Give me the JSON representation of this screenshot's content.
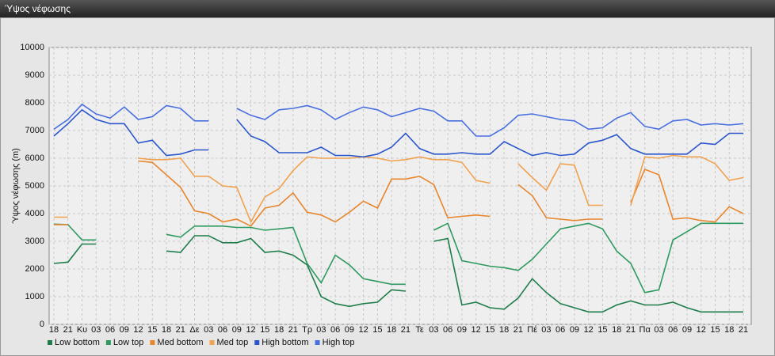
{
  "window": {
    "title": "Ύψος νέφωσης"
  },
  "chart_data": {
    "type": "line",
    "y_label": "Ύψος νέφωσης (m)",
    "categories": [
      "18",
      "21",
      "Κυ",
      "03",
      "06",
      "09",
      "12",
      "15",
      "18",
      "21",
      "Δε",
      "03",
      "06",
      "09",
      "12",
      "15",
      "18",
      "21",
      "Τρ",
      "03",
      "06",
      "09",
      "12",
      "15",
      "18",
      "21",
      "Τε",
      "03",
      "06",
      "09",
      "12",
      "15",
      "18",
      "21",
      "Πέ",
      "03",
      "06",
      "09",
      "12",
      "15",
      "18",
      "21",
      "Πα",
      "03",
      "06",
      "09",
      "12",
      "15",
      "18",
      "21"
    ],
    "ylim": [
      0,
      10000
    ],
    "yticks": [
      0,
      1000,
      2000,
      3000,
      4000,
      5000,
      6000,
      7000,
      8000,
      9000,
      10000
    ],
    "grid": true,
    "legend": "bottom",
    "series": [
      {
        "name": "Low bottom",
        "color": "#1f7d4c",
        "values": [
          2200,
          2250,
          2900,
          2900,
          null,
          null,
          null,
          null,
          2650,
          2600,
          3200,
          3200,
          2950,
          2950,
          3100,
          2600,
          2650,
          2500,
          2150,
          1000,
          750,
          650,
          750,
          800,
          1250,
          1200,
          null,
          3000,
          3100,
          700,
          800,
          600,
          550,
          950,
          1650,
          1150,
          750,
          600,
          450,
          450,
          700,
          850,
          700,
          700,
          800,
          600,
          450,
          450,
          450,
          450
        ]
      },
      {
        "name": "Low top",
        "color": "#2f9a60",
        "values": [
          3620,
          3600,
          3050,
          3050,
          null,
          null,
          null,
          null,
          3250,
          3150,
          3550,
          3550,
          3550,
          3500,
          3500,
          3400,
          3450,
          3500,
          2200,
          1500,
          2500,
          2150,
          1650,
          1550,
          1450,
          1450,
          null,
          3400,
          3650,
          2300,
          2200,
          2100,
          2050,
          1950,
          2350,
          2900,
          3450,
          3550,
          3650,
          3450,
          2650,
          2200,
          1150,
          1250,
          3050,
          3350,
          3650,
          3650,
          3650,
          3650
        ]
      },
      {
        "name": "Med bottom",
        "color": "#e8862c",
        "values": [
          3600,
          3600,
          null,
          null,
          null,
          null,
          5900,
          5850,
          5400,
          4950,
          4100,
          4000,
          3700,
          3800,
          3550,
          4200,
          4300,
          4750,
          4050,
          3950,
          3700,
          4050,
          4450,
          4200,
          5250,
          5250,
          5350,
          5050,
          3850,
          3900,
          3950,
          3900,
          null,
          5050,
          4650,
          3850,
          3800,
          3750,
          3800,
          3800,
          null,
          4400,
          5600,
          5400,
          3800,
          3850,
          3750,
          3700,
          4250,
          4000
        ]
      },
      {
        "name": "Med top",
        "color": "#f0a250",
        "values": [
          3870,
          3870,
          null,
          null,
          null,
          null,
          6000,
          5950,
          5950,
          6000,
          5350,
          5350,
          5000,
          4950,
          3700,
          4600,
          4900,
          5550,
          6050,
          6000,
          6000,
          6000,
          6050,
          6000,
          5900,
          5950,
          6050,
          5950,
          5950,
          5850,
          5200,
          5100,
          null,
          5800,
          5300,
          4850,
          5800,
          5750,
          4300,
          4300,
          null,
          4300,
          6050,
          6000,
          6100,
          6050,
          6050,
          5800,
          5200,
          5300
        ]
      },
      {
        "name": "High bottom",
        "color": "#2b56cc",
        "values": [
          6800,
          7250,
          7750,
          7400,
          7250,
          7250,
          6550,
          6650,
          6100,
          6150,
          6300,
          6300,
          null,
          7400,
          6800,
          6600,
          6200,
          6200,
          6200,
          6400,
          6100,
          6100,
          6050,
          6150,
          6400,
          6900,
          6350,
          6150,
          6150,
          6200,
          6150,
          6150,
          6600,
          6350,
          6100,
          6200,
          6100,
          6150,
          6550,
          6650,
          6850,
          6350,
          6150,
          6150,
          6150,
          6150,
          6550,
          6500,
          6900,
          6900
        ]
      },
      {
        "name": "High top",
        "color": "#4a6fe0",
        "values": [
          7050,
          7400,
          7950,
          7600,
          7450,
          7850,
          7400,
          7500,
          7900,
          7800,
          7350,
          7350,
          null,
          7800,
          7550,
          7400,
          7750,
          7800,
          7900,
          7750,
          7400,
          7650,
          7850,
          7750,
          7500,
          7650,
          7800,
          7700,
          7350,
          7350,
          6800,
          6800,
          7100,
          7550,
          7600,
          7500,
          7400,
          7350,
          7050,
          7100,
          7450,
          7650,
          7150,
          7050,
          7350,
          7400,
          7200,
          7250,
          7200,
          7250
        ]
      }
    ]
  }
}
